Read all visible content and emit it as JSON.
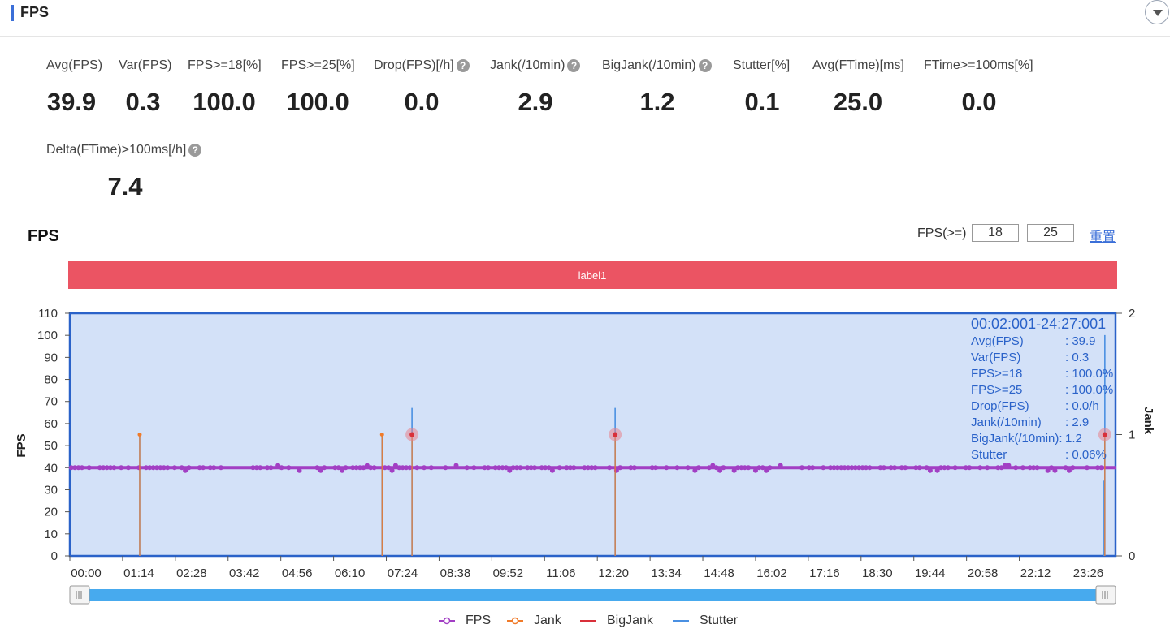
{
  "header": {
    "title": "FPS"
  },
  "metrics": [
    {
      "label": "Avg(FPS)",
      "value": "39.9",
      "help": false
    },
    {
      "label": "Var(FPS)",
      "value": "0.3",
      "help": false
    },
    {
      "label": "FPS>=18[%]",
      "value": "100.0",
      "help": false
    },
    {
      "label": "FPS>=25[%]",
      "value": "100.0",
      "help": false
    },
    {
      "label": "Drop(FPS)[/h]",
      "value": "0.0",
      "help": true
    },
    {
      "label": "Jank(/10min)",
      "value": "2.9",
      "help": true
    },
    {
      "label": "BigJank(/10min)",
      "value": "1.2",
      "help": true
    },
    {
      "label": "Stutter[%]",
      "value": "0.1",
      "help": false
    },
    {
      "label": "Avg(FTime)[ms]",
      "value": "25.0",
      "help": false
    },
    {
      "label": "FTime>=100ms[%]",
      "value": "0.0",
      "help": false
    },
    {
      "label": "Delta(FTime)>100ms[/h]",
      "value": "7.4",
      "help": true
    }
  ],
  "help_icon_glyph": "?",
  "fps_controls": {
    "label": "FPS(>=)",
    "threshold_low": "18",
    "threshold_high": "25",
    "reset_label": "重置"
  },
  "chart_data": {
    "type": "line",
    "title": "FPS",
    "band_label": "label1",
    "ylabel": "FPS",
    "y2label": "Jank",
    "ylim": [
      0,
      110
    ],
    "y2lim": [
      0,
      2
    ],
    "yticks": [
      0,
      10,
      20,
      30,
      40,
      50,
      60,
      70,
      80,
      90,
      100,
      110
    ],
    "y2ticks": [
      0,
      1,
      2
    ],
    "x_range_minutes": [
      0,
      1467
    ],
    "xticks": [
      "00:00",
      "01:14",
      "02:28",
      "03:42",
      "04:56",
      "06:10",
      "07:24",
      "08:38",
      "09:52",
      "11:06",
      "12:20",
      "13:34",
      "14:48",
      "16:02",
      "17:16",
      "18:30",
      "19:44",
      "20:58",
      "22:12",
      "23:26"
    ],
    "grid": false,
    "legend_position": "bottom",
    "series": [
      {
        "name": "FPS",
        "color": "#a23fc4",
        "baseline": 40,
        "min": 38,
        "max": 41
      },
      {
        "name": "Jank",
        "color": "#f07b2a",
        "events_minutes": [
          98,
          438,
          480,
          765,
          1452
        ],
        "events_fps": [
          55,
          55,
          55,
          55,
          55
        ]
      },
      {
        "name": "BigJank",
        "color": "#d9303a",
        "events_minutes": [
          480,
          765,
          1452
        ],
        "events_fps": [
          55,
          55,
          55
        ]
      },
      {
        "name": "Stutter",
        "color": "#4a90e2",
        "events_minutes": [
          98,
          438,
          480,
          765,
          1450,
          1452
        ],
        "events_jank": [
          1,
          1,
          1.22,
          1.22,
          0.62,
          1.82
        ]
      }
    ],
    "summary": {
      "range": "00:02:001-24:27:001",
      "rows": [
        {
          "key": "Avg(FPS)",
          "value": ": 39.9"
        },
        {
          "key": "Var(FPS)",
          "value": ": 0.3"
        },
        {
          "key": "FPS>=18",
          "value": ": 100.0%"
        },
        {
          "key": "FPS>=25",
          "value": ": 100.0%"
        },
        {
          "key": "Drop(FPS)",
          "value": ": 0.0/h"
        },
        {
          "key": "Jank(/10min)",
          "value": ": 2.9"
        },
        {
          "key": "BigJank(/10min):",
          "value": "1.2"
        },
        {
          "key": "Stutter",
          "value": ": 0.06%"
        }
      ]
    },
    "colors": {
      "plot_bg": "#d3e1f8",
      "plot_border": "#2a62c9",
      "band": "#eb5463",
      "slider": "#47aaee"
    }
  }
}
